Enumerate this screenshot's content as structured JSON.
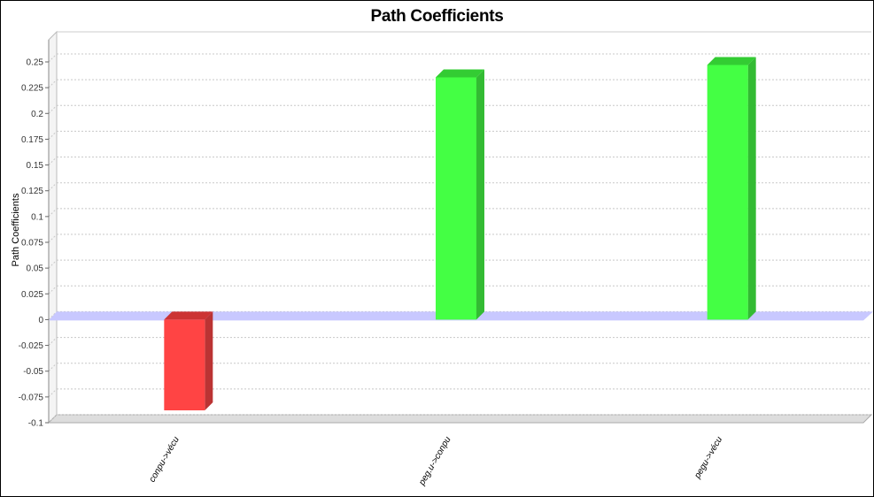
{
  "chart_data": {
    "type": "bar",
    "title": "Path Coefficients",
    "xlabel": "",
    "ylabel": "Path Coefficients",
    "categories": [
      "conpu->vécu",
      "peg.u->conpu",
      "pegu->vécu"
    ],
    "values": [
      -0.088,
      0.235,
      0.247
    ],
    "ylim": [
      -0.1,
      0.25
    ],
    "yticks": [
      0.25,
      0.225,
      0.2,
      0.175,
      0.15,
      0.125,
      0.1,
      0.075,
      0.05,
      0.025,
      0,
      -0.025,
      -0.05,
      -0.075,
      -0.1
    ],
    "ytick_labels": [
      "0.25",
      "0.225",
      "0.2",
      "0.175",
      "0.15",
      "0.125",
      "0.1",
      "0.075",
      "0.05",
      "0.025",
      "0",
      "-0.025",
      "-0.05",
      "-0.075",
      "-0.1"
    ],
    "grid": true,
    "style": "3d",
    "colors": {
      "positive": "#44ff44",
      "positive_top": "#33cc33",
      "positive_side": "#33bb33",
      "negative": "#ff4444",
      "negative_top": "#cc3333",
      "negative_side": "#bb3333",
      "zero_band": "#c8c8ff",
      "wall": "#dddddd",
      "grid": "#c8c8c8"
    }
  }
}
